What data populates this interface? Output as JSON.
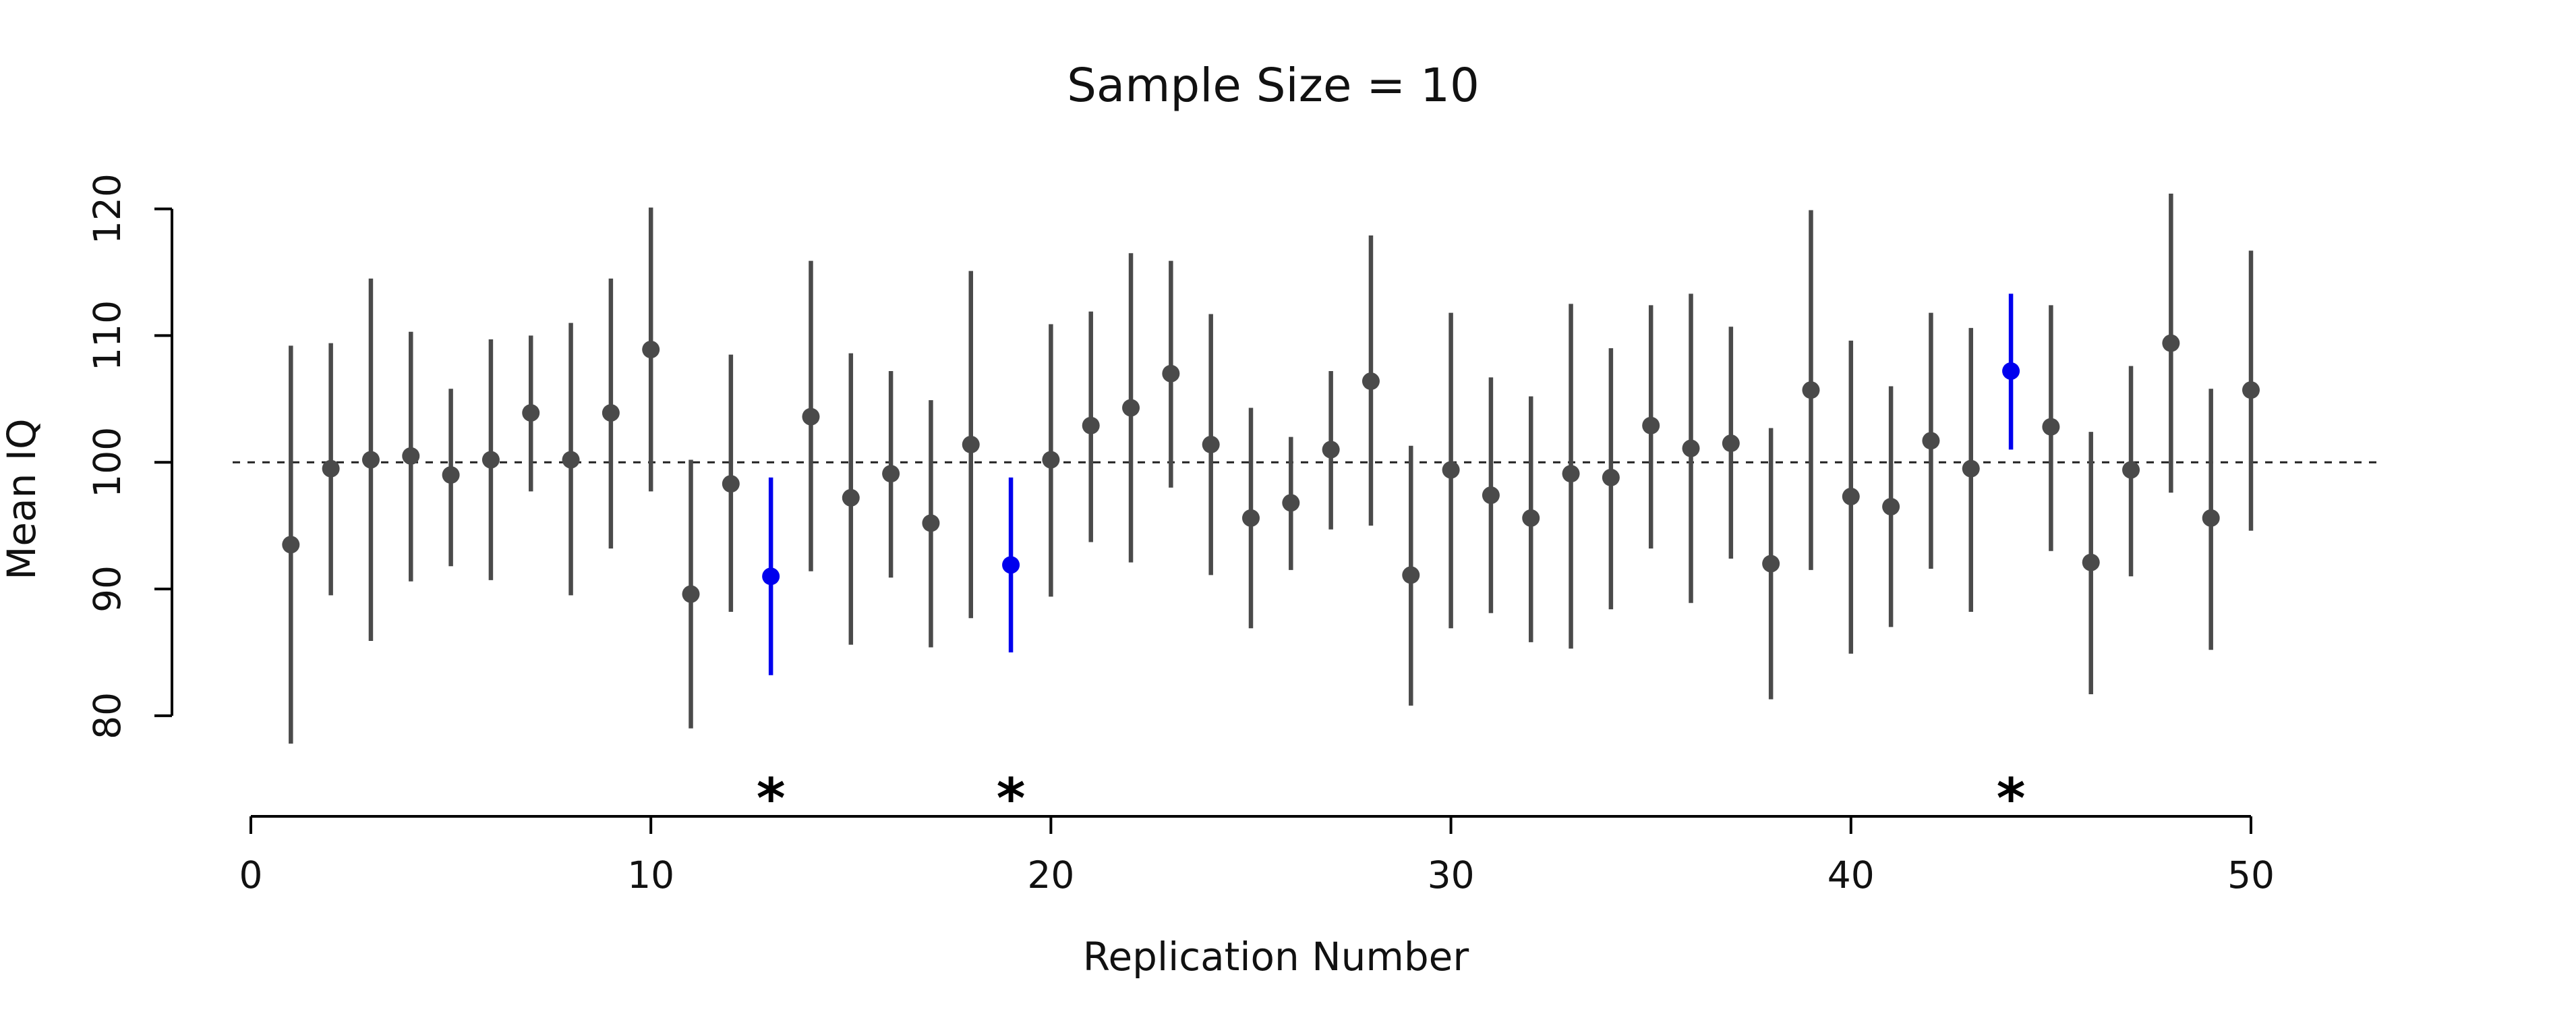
{
  "chart_data": {
    "type": "scatter",
    "title": "Sample Size = 10",
    "xlabel": "Replication Number",
    "ylabel": "Mean IQ",
    "xlim": [
      0,
      50
    ],
    "ylim": [
      76,
      122
    ],
    "x_ticks": [
      0,
      10,
      20,
      30,
      40,
      50
    ],
    "y_ticks": [
      80,
      90,
      100,
      110,
      120
    ],
    "reference_line": {
      "y": 100,
      "style": "dashed"
    },
    "grid": false,
    "legend": "none",
    "colors": {
      "normal": "#4a4a4a",
      "highlight": "#0000ee"
    },
    "miss_marker": "*",
    "series": [
      {
        "x": [
          1,
          2,
          3,
          4,
          5,
          6,
          7,
          8,
          9,
          10,
          11,
          12,
          13,
          14,
          15,
          16,
          17,
          18,
          19,
          20,
          21,
          22,
          23,
          24,
          25,
          26,
          27,
          28,
          29,
          30,
          31,
          32,
          33,
          34,
          35,
          36,
          37,
          38,
          39,
          40,
          41,
          42,
          43,
          44,
          45,
          46,
          47,
          48,
          49,
          50
        ],
        "y": [
          93.5,
          99.5,
          100.2,
          100.5,
          99,
          100.2,
          103.9,
          100.2,
          103.9,
          108.9,
          89.6,
          98.3,
          91,
          103.6,
          97.2,
          99.1,
          95.2,
          101.4,
          91.9,
          100.2,
          102.9,
          104.3,
          107,
          101.4,
          95.6,
          96.8,
          101,
          106.4,
          91.1,
          99.4,
          97.4,
          95.6,
          99.1,
          98.8,
          102.9,
          101.1,
          101.5,
          92,
          105.7,
          97.3,
          96.5,
          101.7,
          99.5,
          107.2,
          102.8,
          92.1,
          99.4,
          109.4,
          95.6,
          105.7
        ],
        "lower": [
          77.8,
          89.5,
          85.9,
          90.6,
          91.8,
          90.7,
          97.7,
          89.5,
          93.2,
          97.7,
          79,
          88.2,
          83.2,
          91.4,
          85.6,
          90.9,
          85.4,
          87.7,
          85,
          89.4,
          93.7,
          92.1,
          98,
          91.1,
          86.9,
          91.5,
          94.7,
          95,
          80.8,
          86.9,
          88.1,
          85.8,
          85.3,
          88.4,
          93.2,
          88.9,
          92.4,
          81.3,
          91.5,
          84.9,
          87,
          91.6,
          88.2,
          101,
          93,
          81.7,
          91,
          97.6,
          85.2,
          94.6
        ],
        "upper": [
          109.2,
          109.4,
          114.5,
          110.3,
          105.8,
          109.7,
          110,
          111,
          114.5,
          120.1,
          100.2,
          108.5,
          98.8,
          115.9,
          108.6,
          107.2,
          104.9,
          115.1,
          98.8,
          110.9,
          111.9,
          116.5,
          115.9,
          111.7,
          104.3,
          102,
          107.2,
          117.9,
          101.3,
          111.8,
          106.7,
          105.2,
          112.5,
          109,
          112.4,
          113.3,
          110.7,
          102.7,
          119.9,
          109.6,
          106,
          111.8,
          110.6,
          113.3,
          112.4,
          102.4,
          107.6,
          121.2,
          105.8,
          116.7
        ],
        "highlighted": [
          13,
          19,
          44
        ]
      }
    ]
  }
}
